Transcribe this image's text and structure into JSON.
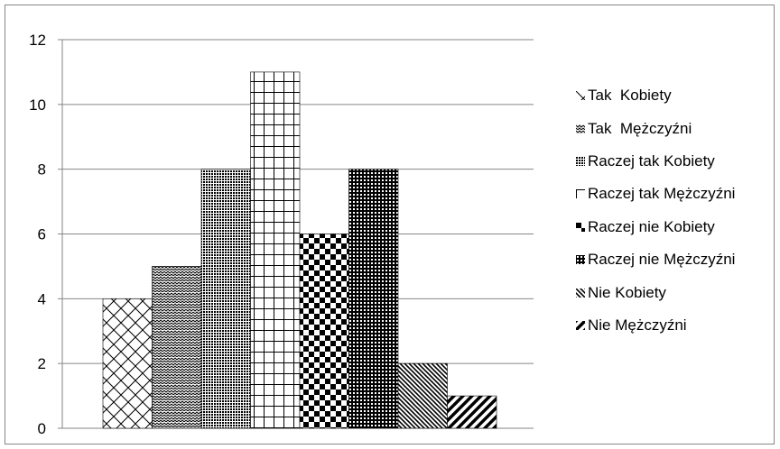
{
  "chart_data": {
    "type": "bar",
    "title": "",
    "xlabel": "",
    "ylabel": "",
    "ylim": [
      0,
      12
    ],
    "yticks": [
      "0",
      "2",
      "4",
      "6",
      "8",
      "10",
      "12"
    ],
    "grid": true,
    "legend_position": "right",
    "categories": [
      ""
    ],
    "series": [
      {
        "name": "Tak  Kobiety",
        "values": [
          4
        ],
        "pattern": "diagonal-cross"
      },
      {
        "name": "Tak  Mężczyźni",
        "values": [
          5
        ],
        "pattern": "zigzag"
      },
      {
        "name": "Raczej tak Kobiety",
        "values": [
          8
        ],
        "pattern": "dense-dots"
      },
      {
        "name": "Raczej tak Mężczyźni",
        "values": [
          11
        ],
        "pattern": "grid"
      },
      {
        "name": "Raczej nie Kobiety",
        "values": [
          6
        ],
        "pattern": "checker"
      },
      {
        "name": "Raczej nie Mężczyźni",
        "values": [
          8
        ],
        "pattern": "dotted-dark"
      },
      {
        "name": "Nie Kobiety",
        "values": [
          2
        ],
        "pattern": "thin-diagonal"
      },
      {
        "name": "Nie Mężczyźni",
        "values": [
          1
        ],
        "pattern": "wide-diagonal"
      }
    ]
  },
  "colors": {
    "gridline": "#868686",
    "bar_stroke": "#000000",
    "frame": "#868686"
  }
}
